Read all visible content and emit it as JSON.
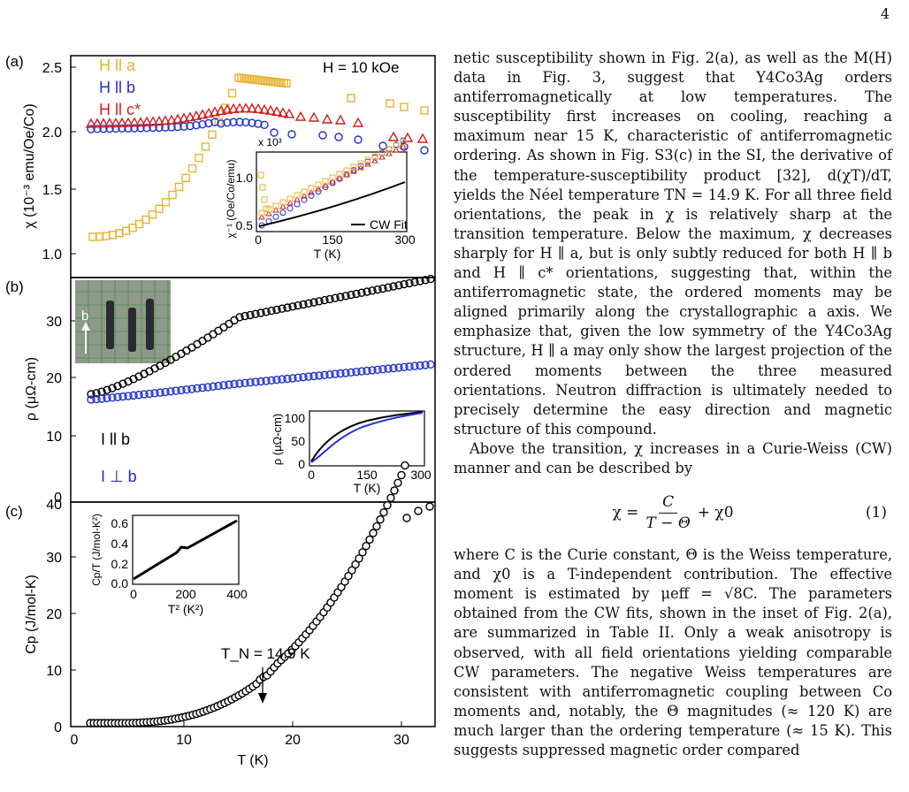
{
  "page_number": "4",
  "figure": {
    "panel_a": {
      "label": "(a)",
      "ylabel": "χ (10⁻³ emu/Oe/Co)",
      "field_text": "H = 10 kOe",
      "legend": [
        "H ll a",
        "H ll b",
        "H ll c*"
      ],
      "yticks": [
        "1.0",
        "1.5",
        "2.0",
        "2.5"
      ],
      "inset": {
        "multiplier": "x 10³",
        "ylabel": "χ⁻¹ (Oe/Co/emu)",
        "xlabel": "T (K)",
        "yticks": [
          "0.5",
          "1.0"
        ],
        "xticks": [
          "0",
          "150",
          "300"
        ],
        "fit_label": "CW Fit"
      }
    },
    "panel_b": {
      "label": "(b)",
      "ylabel": "ρ (μΩ-cm)",
      "yticks": [
        "0",
        "10",
        "20",
        "30"
      ],
      "legend": [
        "I ll b",
        "I ⊥ b"
      ],
      "photo_arrow_label": "b",
      "inset": {
        "ylabel": "ρ (μΩ-cm)",
        "xlabel": "T (K)",
        "yticks": [
          "0",
          "50",
          "100"
        ],
        "xticks": [
          "0",
          "150",
          "300"
        ]
      }
    },
    "panel_c": {
      "label": "(c)",
      "ylabel": "Cp (J/mol-K)",
      "yticks": [
        "0",
        "10",
        "20",
        "30",
        "40"
      ],
      "xticks": [
        "0",
        "10",
        "20",
        "30"
      ],
      "xlabel": "T (K)",
      "annotation": "T_N = 14.9 K",
      "inset": {
        "ylabel": "Cp/T (J/mol-K²)",
        "xlabel": "T² (K²)",
        "yticks": [
          "0.0",
          "0.2",
          "0.4",
          "0.6"
        ],
        "xticks": [
          "0",
          "200",
          "400"
        ]
      }
    }
  },
  "colors": {
    "a": "#e8b233",
    "b": "#1f2fd0",
    "c": "#d11f1f",
    "black": "#000000"
  },
  "text": {
    "p1": "netic susceptibility shown in Fig. 2(a), as well as the M(H) data in Fig. 3, suggest that Y4Co3Ag orders antiferromagnetically at low temperatures. The susceptibility first increases on cooling, reaching a maximum near 15 K, characteristic of antiferromagnetic ordering. As shown in Fig. S3(c) in the SI, the derivative of the temperature-susceptibility product [32], d(χT)/dT, yields the Néel temperature TN = 14.9 K. For all three field orientations, the peak in χ is relatively sharp at the transition temperature. Below the maximum, χ decreases sharply for H ∥ a, but is only subtly reduced for both H ∥ b and H ∥ c* orientations, suggesting that, within the antiferromagnetic state, the ordered moments may be aligned primarily along the crystallographic a axis. We emphasize that, given the low symmetry of the Y4Co3Ag structure, H ∥ a may only show the largest projection of the ordered moments between the three measured orientations. Neutron diffraction is ultimately needed to precisely determine the easy direction and magnetic structure of this compound.",
    "p2": "Above the transition, χ increases in a Curie-Weiss (CW) manner and can be described by",
    "eq_lhs": "χ =",
    "eq_num": "C",
    "eq_den": "T − Θ",
    "eq_rhs": "+ χ0",
    "eq_label": "(1)",
    "p3": "where C is the Curie constant, Θ is the Weiss temperature, and χ0 is a T-independent contribution. The effective moment is estimated by μeff = √8C. The parameters obtained from the CW fits, shown in the inset of Fig. 2(a), are summarized in Table II. Only a weak anisotropy is observed, with all field orientations yielding comparable CW parameters. The negative Weiss temperatures are consistent with antiferromagnetic coupling between Co moments and, notably, the Θ magnitudes (≈ 120 K) are much larger than the ordering temperature (≈ 15 K). This suggests suppressed magnetic order compared"
  }
}
